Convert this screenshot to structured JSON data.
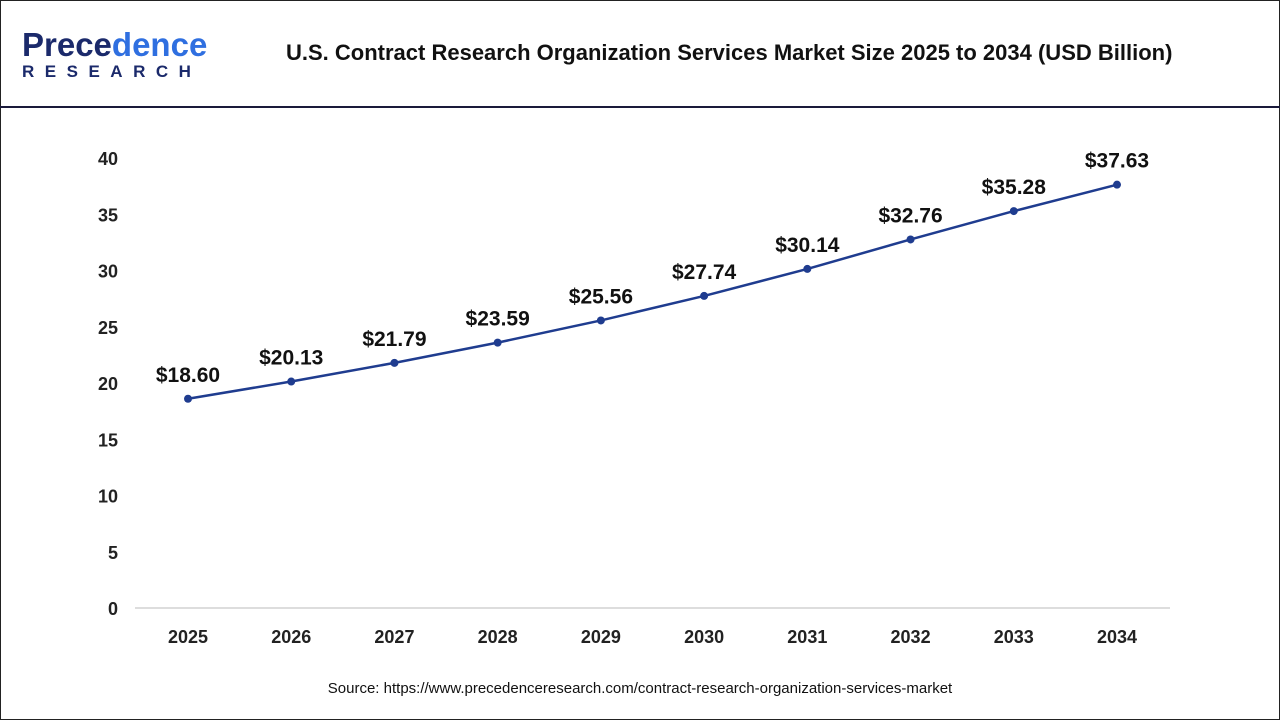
{
  "brand": {
    "logo_top": "Precedence",
    "logo_bottom": "RESEARCH"
  },
  "header": {
    "title": "U.S. Contract Research Organization Services Market Size 2025 to 2034 (USD Billion)"
  },
  "footer": {
    "source": "Source: https://www.precedenceresearch.com/contract-research-organization-services-market"
  },
  "colors": {
    "line": "#1f3c8f",
    "brand_dark": "#1b2a6b",
    "brand_blue": "#2f6fe0"
  },
  "chart_data": {
    "type": "line",
    "title": "U.S. Contract Research Organization Services Market Size 2025 to 2034 (USD Billion)",
    "categories": [
      "2025",
      "2026",
      "2027",
      "2028",
      "2029",
      "2030",
      "2031",
      "2032",
      "2033",
      "2034"
    ],
    "values": [
      18.6,
      20.13,
      21.79,
      23.59,
      25.56,
      27.74,
      30.14,
      32.76,
      35.28,
      37.63
    ],
    "data_labels": [
      "$18.60",
      "$20.13",
      "$21.79",
      "$23.59",
      "$25.56",
      "$27.74",
      "$30.14",
      "$32.76",
      "$35.28",
      "$37.63"
    ],
    "yticks": [
      0,
      5,
      10,
      15,
      20,
      25,
      30,
      35,
      40
    ],
    "ylim": [
      0,
      40
    ],
    "xlabel": "",
    "ylabel": "",
    "grid": false,
    "markers": true
  }
}
